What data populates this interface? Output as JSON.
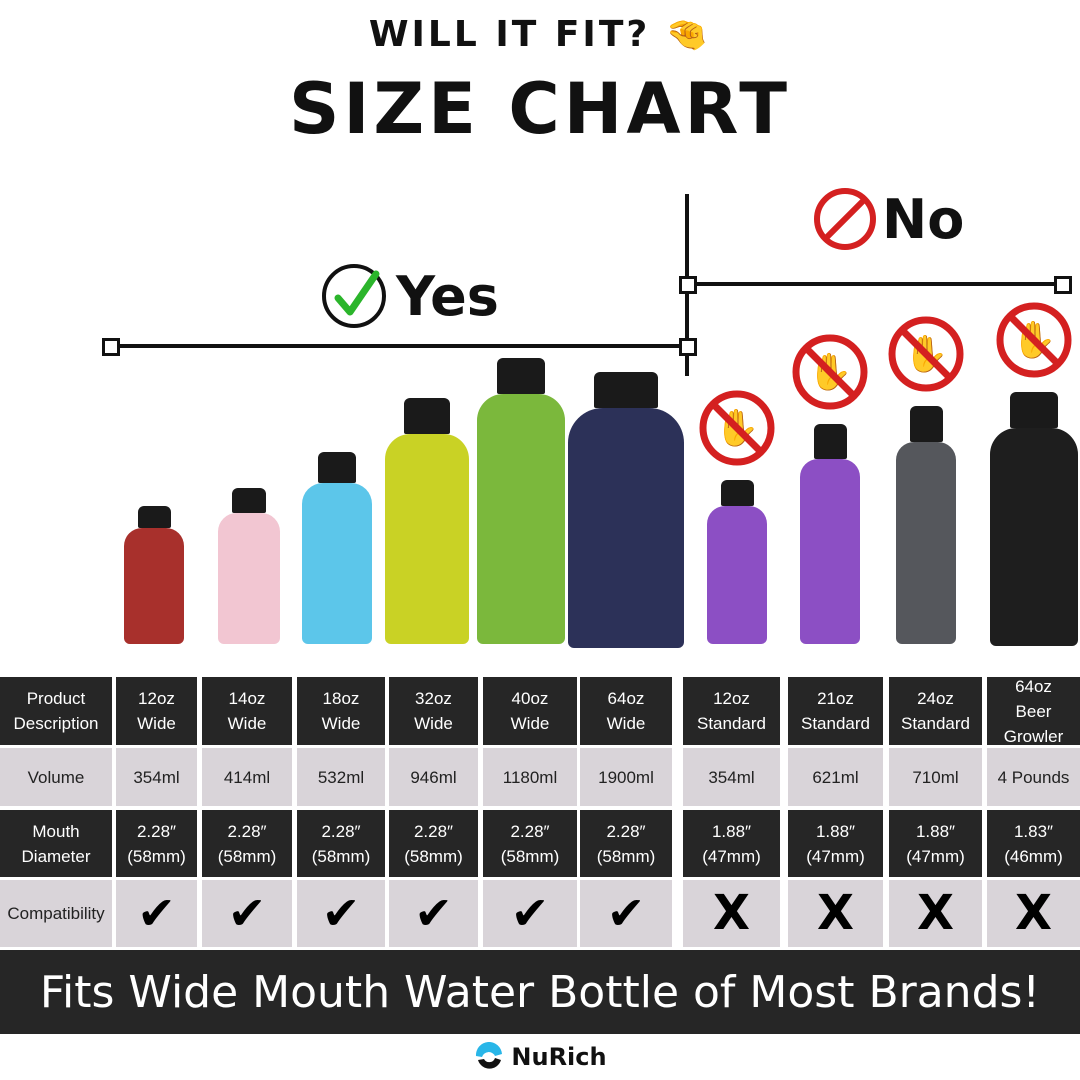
{
  "header": {
    "kicker": "WILL IT FIT?",
    "kicker_emoji": "🤏",
    "title": "SIZE CHART"
  },
  "groups": {
    "yes_label": "Yes",
    "no_label": "No",
    "yes_color": "#2bb52b",
    "no_color": "#d42020"
  },
  "table": {
    "row_labels": [
      "Product\nDescription",
      "Volume",
      "Mouth\nDiameter",
      "Compatibility"
    ],
    "columns": [
      {
        "name": "12oz\nWide",
        "volume": "354ml",
        "mouth": "2.28″\n(58mm)",
        "compatible": true,
        "color": "#a8302c"
      },
      {
        "name": "14oz\nWide",
        "volume": "414ml",
        "mouth": "2.28″\n(58mm)",
        "compatible": true,
        "color": "#f2c6d2"
      },
      {
        "name": "18oz\nWide",
        "volume": "532ml",
        "mouth": "2.28″\n(58mm)",
        "compatible": true,
        "color": "#5cc6ea"
      },
      {
        "name": "32oz\nWide",
        "volume": "946ml",
        "mouth": "2.28″\n(58mm)",
        "compatible": true,
        "color": "#c9d225"
      },
      {
        "name": "40oz\nWide",
        "volume": "1180ml",
        "mouth": "2.28″\n(58mm)",
        "compatible": true,
        "color": "#7bb83c"
      },
      {
        "name": "64oz\nWide",
        "volume": "1900ml",
        "mouth": "2.28″\n(58mm)",
        "compatible": true,
        "color": "#2c3158"
      },
      {
        "name": "12oz\nStandard",
        "volume": "354ml",
        "mouth": "1.88″\n(47mm)",
        "compatible": false,
        "color": "#8c4fc4"
      },
      {
        "name": "21oz\nStandard",
        "volume": "621ml",
        "mouth": "1.88″\n(47mm)",
        "compatible": false,
        "color": "#8c4fc4"
      },
      {
        "name": "24oz\nStandard",
        "volume": "710ml",
        "mouth": "1.88″\n(47mm)",
        "compatible": false,
        "color": "#55575c"
      },
      {
        "name": "64oz\nBeer Growler",
        "volume": "4  Pounds",
        "mouth": "1.83″\n(46mm)",
        "compatible": false,
        "color": "#1e1e1e"
      }
    ],
    "check_symbol": "✔",
    "cross_symbol": "X"
  },
  "banner": {
    "text": "Fits Wide Mouth Water Bottle of Most Brands!"
  },
  "brand": {
    "name": "NuRich"
  }
}
